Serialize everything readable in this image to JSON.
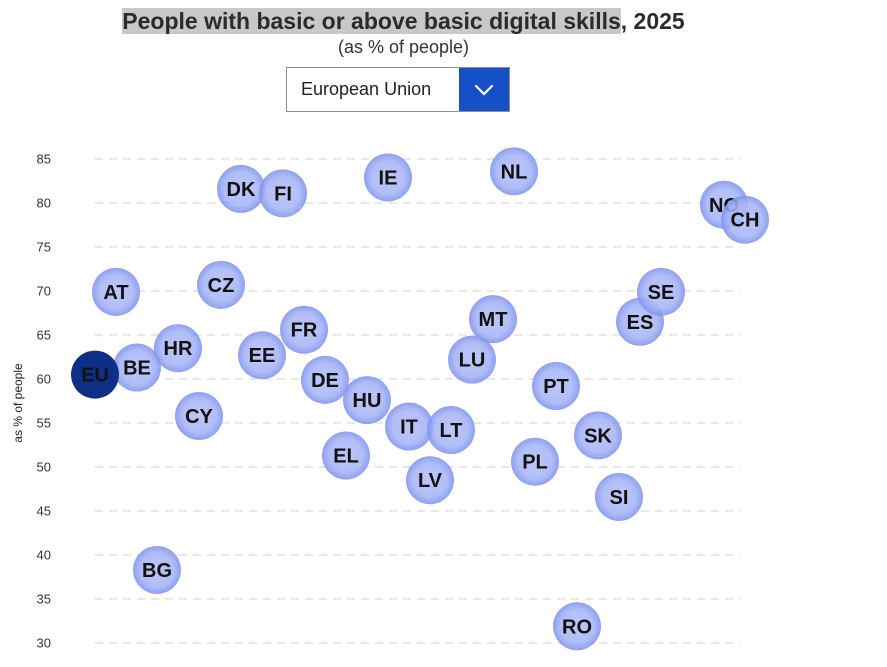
{
  "title": {
    "highlighted": "People with basic or above basic digital skills",
    "rest": ", 2025"
  },
  "subtitle": "(as % of people)",
  "selector": {
    "selected": "European Union",
    "icon": "chevron-down-icon"
  },
  "colors": {
    "bubble_fill": "#a6b4f5",
    "bubble_edge": "#7f92ee",
    "highlight_fill": "#0f2f86",
    "gridline": "#d9d9d9",
    "dropdown_button": "#1550c8"
  },
  "chart_data": {
    "type": "scatter",
    "title": "People with basic or above basic digital skills, 2025",
    "subtitle": "(as % of people)",
    "ylabel": "as % of people",
    "ylim": [
      30,
      85
    ],
    "yticks": [
      30,
      35,
      40,
      45,
      50,
      55,
      60,
      65,
      70,
      75,
      80,
      85
    ],
    "grid": true,
    "highlighted": "EU",
    "points": [
      {
        "label": "EU",
        "y": 60.5
      },
      {
        "label": "BE",
        "y": 61.3
      },
      {
        "label": "BG",
        "y": 38.3
      },
      {
        "label": "CZ",
        "y": 70.7
      },
      {
        "label": "DK",
        "y": 81.6
      },
      {
        "label": "DE",
        "y": 59.9
      },
      {
        "label": "EE",
        "y": 62.7
      },
      {
        "label": "IE",
        "y": 82.9
      },
      {
        "label": "EL",
        "y": 51.3
      },
      {
        "label": "ES",
        "y": 66.5
      },
      {
        "label": "FR",
        "y": 65.6
      },
      {
        "label": "HR",
        "y": 63.5
      },
      {
        "label": "IT",
        "y": 54.6
      },
      {
        "label": "CY",
        "y": 55.8
      },
      {
        "label": "LV",
        "y": 48.5
      },
      {
        "label": "LT",
        "y": 54.2
      },
      {
        "label": "LU",
        "y": 62.2
      },
      {
        "label": "HU",
        "y": 57.6
      },
      {
        "label": "MT",
        "y": 66.8
      },
      {
        "label": "NL",
        "y": 83.6
      },
      {
        "label": "AT",
        "y": 69.9
      },
      {
        "label": "PL",
        "y": 50.6
      },
      {
        "label": "PT",
        "y": 59.2
      },
      {
        "label": "RO",
        "y": 31.9
      },
      {
        "label": "SI",
        "y": 46.6
      },
      {
        "label": "SK",
        "y": 53.6
      },
      {
        "label": "FI",
        "y": 81.1
      },
      {
        "label": "SE",
        "y": 69.9
      },
      {
        "label": "NO",
        "y": 79.8
      },
      {
        "label": "CH",
        "y": 78.1
      }
    ]
  }
}
